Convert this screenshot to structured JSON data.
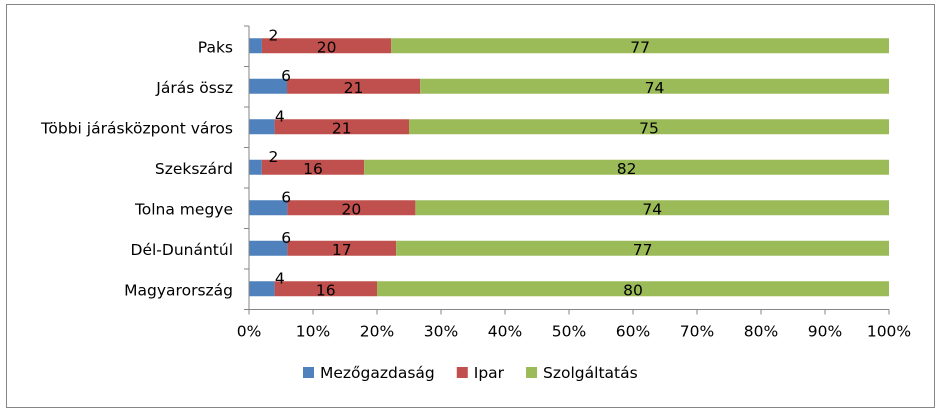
{
  "chart_data": {
    "type": "bar",
    "orientation": "horizontal",
    "stacked": "percent",
    "categories": [
      "Paks",
      "Járás össz",
      "Többi járásközpont város",
      "Szekszárd",
      "Tolna megye",
      "Dél-Dunántúl",
      "Magyarország"
    ],
    "series": [
      {
        "name": "Mezőgazdaság",
        "color": "#4f81bd",
        "values": [
          2,
          6,
          4,
          2,
          6,
          6,
          4
        ],
        "labels": [
          "2",
          "6",
          "4",
          "2",
          "6",
          "6",
          "4"
        ]
      },
      {
        "name": "Ipar",
        "color": "#c0504d",
        "values": [
          20,
          21,
          21,
          16,
          20,
          17,
          16
        ],
        "labels": [
          "20",
          "21",
          "21",
          "16",
          "20",
          "17",
          "16"
        ]
      },
      {
        "name": "Szolgáltatás",
        "color": "#9bbb59",
        "values": [
          77,
          74,
          75,
          82,
          74,
          77,
          80
        ],
        "labels": [
          "77",
          "74",
          "75",
          "82",
          "74",
          "77",
          "80"
        ]
      }
    ],
    "xlim": [
      0,
      100
    ],
    "xticks": [
      "0%",
      "10%",
      "20%",
      "30%",
      "40%",
      "50%",
      "60%",
      "70%",
      "80%",
      "90%",
      "100%"
    ],
    "grid": false,
    "legend_position": "bottom"
  }
}
